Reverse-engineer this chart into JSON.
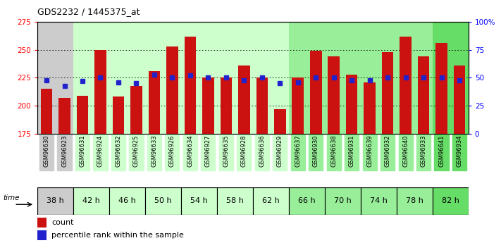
{
  "title": "GDS2232 / 1445375_at",
  "samples": [
    "GSM96630",
    "GSM96923",
    "GSM96631",
    "GSM96924",
    "GSM96632",
    "GSM96925",
    "GSM96633",
    "GSM96926",
    "GSM96634",
    "GSM96927",
    "GSM96635",
    "GSM96928",
    "GSM96636",
    "GSM96929",
    "GSM96637",
    "GSM96930",
    "GSM96638",
    "GSM96931",
    "GSM96639",
    "GSM96932",
    "GSM96640",
    "GSM96933",
    "GSM96641",
    "GSM96934"
  ],
  "time_groups": [
    {
      "label": "38 h",
      "start": 0,
      "end": 2,
      "color": "#cccccc"
    },
    {
      "label": "42 h",
      "start": 2,
      "end": 4,
      "color": "#ccffcc"
    },
    {
      "label": "46 h",
      "start": 4,
      "end": 6,
      "color": "#ccffcc"
    },
    {
      "label": "50 h",
      "start": 6,
      "end": 8,
      "color": "#ccffcc"
    },
    {
      "label": "54 h",
      "start": 8,
      "end": 10,
      "color": "#ccffcc"
    },
    {
      "label": "58 h",
      "start": 10,
      "end": 12,
      "color": "#ccffcc"
    },
    {
      "label": "62 h",
      "start": 12,
      "end": 14,
      "color": "#ccffcc"
    },
    {
      "label": "66 h",
      "start": 14,
      "end": 16,
      "color": "#99ee99"
    },
    {
      "label": "70 h",
      "start": 16,
      "end": 18,
      "color": "#99ee99"
    },
    {
      "label": "74 h",
      "start": 18,
      "end": 20,
      "color": "#99ee99"
    },
    {
      "label": "78 h",
      "start": 20,
      "end": 22,
      "color": "#99ee99"
    },
    {
      "label": "82 h",
      "start": 22,
      "end": 24,
      "color": "#66dd66"
    }
  ],
  "counts": [
    215,
    207,
    209,
    250,
    208,
    218,
    231,
    253,
    262,
    225,
    225,
    236,
    225,
    197,
    225,
    249,
    244,
    228,
    221,
    248,
    262,
    244,
    256,
    236
  ],
  "percentiles": [
    48,
    43,
    47,
    50,
    46,
    45,
    53,
    50,
    52,
    50,
    50,
    48,
    50,
    45,
    46,
    50,
    50,
    48,
    48,
    50,
    50,
    50,
    50,
    48
  ],
  "y_min": 175,
  "y_max": 275,
  "y_ticks_left": [
    175,
    200,
    225,
    250,
    275
  ],
  "y_ticks_right": [
    0,
    25,
    50,
    75,
    100
  ],
  "bar_color": "#cc1111",
  "percentile_color": "#2222cc",
  "legend_count_label": "count",
  "legend_pct_label": "percentile rank within the sample"
}
